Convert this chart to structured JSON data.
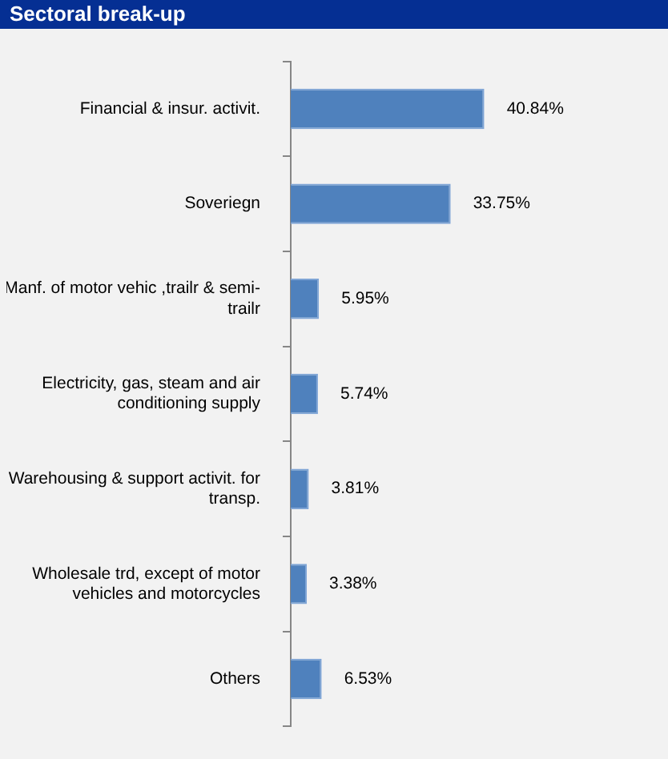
{
  "chart_data": {
    "type": "bar",
    "orientation": "horizontal",
    "title": "Sectoral break-up",
    "categories": [
      "Financial & insur. activit.",
      "Soveriegn",
      "Manf. of motor vehic ,trailr & semi-trailr",
      "Electricity, gas, steam and air conditioning supply",
      "Warehousing & support activit. for transp.",
      "Wholesale trd, except of motor vehicles and motorcycles",
      "Others"
    ],
    "values": [
      40.84,
      33.75,
      5.95,
      5.74,
      3.81,
      3.38,
      6.53
    ],
    "value_labels": [
      "40.84%",
      "33.75%",
      "5.95%",
      "5.74%",
      "3.81%",
      "3.38%",
      "6.53%"
    ],
    "color": "#4f81bd",
    "legend": false
  }
}
